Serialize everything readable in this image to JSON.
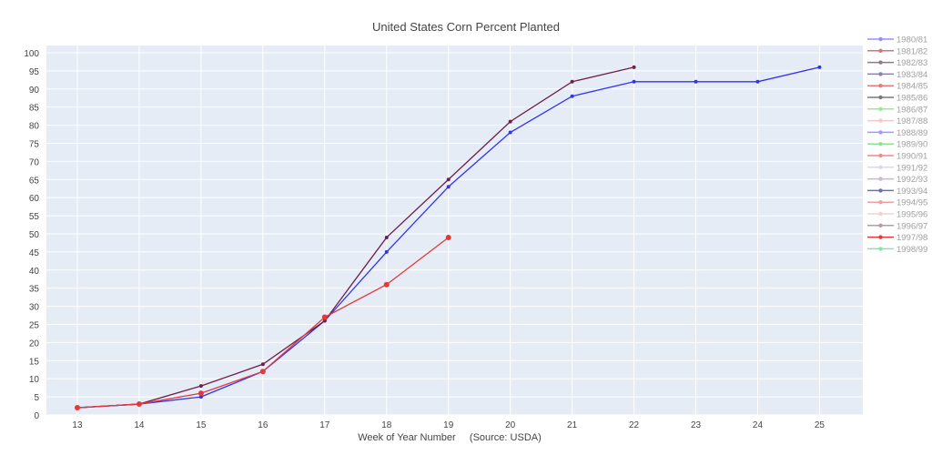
{
  "chart_data": {
    "type": "line",
    "title": "United States Corn Percent Planted",
    "xlabel": "Week of Year Number     (Source: USDA)",
    "ylabel": "",
    "xlim": [
      12.5,
      25.7
    ],
    "ylim": [
      0,
      102
    ],
    "x_ticks": [
      13,
      14,
      15,
      16,
      17,
      18,
      19,
      20,
      21,
      22,
      23,
      24,
      25
    ],
    "y_ticks": [
      0,
      5,
      10,
      15,
      20,
      25,
      30,
      35,
      40,
      45,
      50,
      55,
      60,
      65,
      70,
      75,
      80,
      85,
      90,
      95,
      100
    ],
    "grid": true,
    "legend_position": "right",
    "series": [
      {
        "name": "1980/81",
        "color": "#8f8fff",
        "x": [],
        "values": []
      },
      {
        "name": "1981/82",
        "color": "#c87a7a",
        "x": [],
        "values": []
      },
      {
        "name": "1982/83",
        "color": "#8a7a8a",
        "x": [],
        "values": []
      },
      {
        "name": "1983/84",
        "color": "#8a7fb0",
        "x": [],
        "values": []
      },
      {
        "name": "1984/85",
        "color": "#e77a7a",
        "x": [],
        "values": []
      },
      {
        "name": "1985/86",
        "color": "#7a7a7a",
        "x": [],
        "values": []
      },
      {
        "name": "1986/87",
        "color": "#9be89b",
        "x": [],
        "values": []
      },
      {
        "name": "1987/88",
        "color": "#f2c8c8",
        "x": [],
        "values": []
      },
      {
        "name": "1988/89",
        "color": "#9a9aff",
        "x": [],
        "values": []
      },
      {
        "name": "1989/90",
        "color": "#8fe08f",
        "x": [],
        "values": []
      },
      {
        "name": "1990/91",
        "color": "#f08a8a",
        "x": [],
        "values": []
      },
      {
        "name": "1991/92",
        "color": "#d8d8ee",
        "x": [],
        "values": []
      },
      {
        "name": "1992/93",
        "color": "#c6b8d6",
        "x": [],
        "values": []
      },
      {
        "name": "1993/94",
        "color": "#6f6fa8",
        "x": [],
        "values": []
      },
      {
        "name": "1994/95",
        "color": "#f0a0a0",
        "x": [],
        "values": []
      },
      {
        "name": "1995/96",
        "color": "#f5d0d0",
        "x": [],
        "values": []
      },
      {
        "name": "1996/97",
        "color": "#b89aa0",
        "x": [],
        "values": []
      },
      {
        "name": "1997/98",
        "color": "#e03a3a",
        "x": [
          13,
          14,
          15,
          16,
          17,
          18,
          19
        ],
        "values": [
          2,
          3,
          6,
          12,
          27,
          36,
          49
        ]
      },
      {
        "name": "1998/99",
        "color": "#8fe0b0",
        "x": [],
        "values": []
      }
    ],
    "extra_lines": [
      {
        "color": "#3333ee",
        "x": [
          13,
          14,
          15,
          16,
          17,
          18,
          19,
          20,
          21,
          22,
          23,
          24,
          25
        ],
        "values": [
          2,
          3,
          5,
          12,
          26,
          45,
          63,
          78,
          88,
          92,
          92,
          92,
          96
        ]
      },
      {
        "color": "#6e1f4a",
        "x": [
          13,
          14,
          15,
          16,
          17,
          18,
          19,
          20,
          21,
          22
        ],
        "values": [
          2,
          3,
          8,
          14,
          26,
          49,
          65,
          81,
          92,
          96
        ]
      }
    ]
  }
}
